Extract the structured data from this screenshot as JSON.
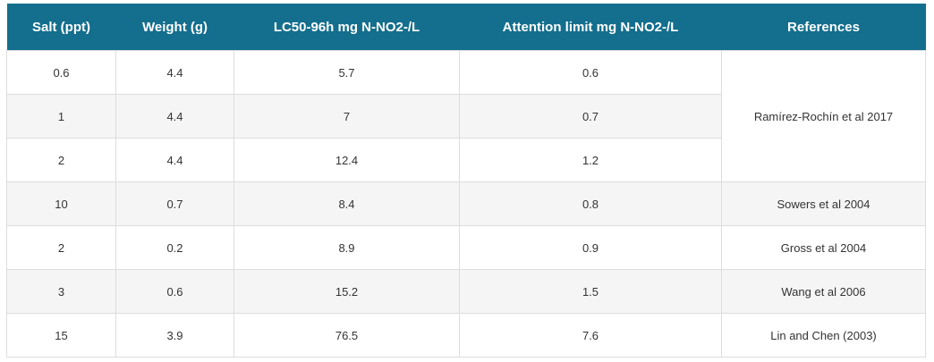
{
  "table": {
    "headers": [
      "Salt (ppt)",
      "Weight (g)",
      "LC50-96h mg N-NO2-/L",
      "Attention limit mg N-NO2-/L",
      "References"
    ],
    "rows": [
      {
        "salt": "0.6",
        "weight": "4.4",
        "lc50": "5.7",
        "limit": "0.6"
      },
      {
        "salt": "1",
        "weight": "4.4",
        "lc50": "7",
        "limit": "0.7"
      },
      {
        "salt": "2",
        "weight": "4.4",
        "lc50": "12.4",
        "limit": "1.2"
      },
      {
        "salt": "10",
        "weight": "0.7",
        "lc50": "8.4",
        "limit": "0.8",
        "ref": "Sowers et al 2004"
      },
      {
        "salt": "2",
        "weight": "0.2",
        "lc50": "8.9",
        "limit": "0.9",
        "ref": "Gross et al 2004"
      },
      {
        "salt": "3",
        "weight": "0.6",
        "lc50": "15.2",
        "limit": "1.5",
        "ref": "Wang et al 2006"
      },
      {
        "salt": "15",
        "weight": "3.9",
        "lc50": "76.5",
        "limit": "7.6",
        "ref": "Lin and Chen (2003)"
      }
    ],
    "merged_reference": "Ramírez-Rochín et al 2017"
  },
  "colors": {
    "header_bg": "#146e8d",
    "header_text": "#ffffff",
    "row_alt_bg": "#f5f5f5",
    "border": "#dddddd"
  }
}
